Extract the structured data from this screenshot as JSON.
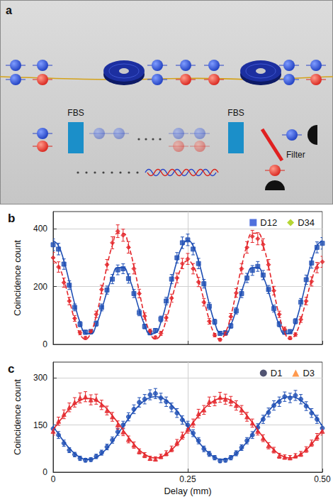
{
  "diagram": {
    "title": "a",
    "beam_splitters": [
      "FBS",
      "FBS"
    ],
    "filter": "Filter"
  },
  "chart_data": [
    {
      "type": "scatter",
      "title": "b",
      "y_label": "Coincidence count",
      "x": [
        0,
        0.01,
        0.02,
        0.03,
        0.04,
        0.05,
        0.06,
        0.07,
        0.08,
        0.09,
        0.1,
        0.11,
        0.12,
        0.13,
        0.14,
        0.15,
        0.16,
        0.17,
        0.18,
        0.19,
        0.2,
        0.21,
        0.22,
        0.23,
        0.24,
        0.25,
        0.26,
        0.27,
        0.28,
        0.29,
        0.3,
        0.31,
        0.32,
        0.33,
        0.34,
        0.35,
        0.36,
        0.37,
        0.38,
        0.39,
        0.4,
        0.41,
        0.42,
        0.43,
        0.44,
        0.45,
        0.46,
        0.47,
        0.48,
        0.49,
        0.5
      ],
      "xlim": [
        0,
        0.5
      ],
      "xticks": [
        0,
        0.25,
        {
          "value": 0.5,
          "label": "0.50"
        }
      ],
      "ylim": [
        0,
        460
      ],
      "yticks": [
        0,
        200,
        400
      ],
      "grid": true,
      "legend": "upper right",
      "tick_labels": "y",
      "series": [
        {
          "name": "D12",
          "color": "#1f4fb4",
          "marker": "square",
          "line_style": "solid",
          "values": [
            345,
            330,
            278,
            205,
            128,
            70,
            42,
            44,
            72,
            128,
            188,
            226,
            258,
            262,
            228,
            176,
            110,
            62,
            40,
            48,
            88,
            150,
            226,
            300,
            352,
            362,
            330,
            280,
            210,
            132,
            78,
            38,
            40,
            64,
            116,
            176,
            230,
            256,
            270,
            240,
            190,
            124,
            70,
            42,
            44,
            80,
            146,
            224,
            282,
            336,
            350
          ],
          "errors": [
            20,
            20,
            18,
            15,
            12,
            9,
            7,
            7,
            9,
            12,
            14,
            16,
            17,
            17,
            16,
            14,
            11,
            8,
            7,
            7,
            10,
            13,
            16,
            18,
            20,
            20,
            20,
            18,
            15,
            12,
            9,
            7,
            7,
            8,
            11,
            14,
            16,
            17,
            17,
            16,
            14,
            12,
            9,
            7,
            7,
            9,
            13,
            16,
            18,
            19,
            20
          ],
          "fit": [
            360,
            341,
            289,
            217,
            140,
            76,
            39,
            36,
            67,
            120,
            182,
            235,
            266,
            266,
            235,
            182,
            120,
            67,
            36,
            39,
            76,
            140,
            217,
            289,
            341,
            360,
            341,
            289,
            217,
            140,
            76,
            39,
            36,
            67,
            120,
            182,
            235,
            266,
            266,
            235,
            182,
            120,
            67,
            36,
            39,
            76,
            140,
            217,
            289,
            341,
            360
          ]
        },
        {
          "name": "D34",
          "color": "#e4262b",
          "marker": "diamond",
          "line_style": "dashed",
          "values": [
            300,
            268,
            214,
            150,
            90,
            40,
            22,
            44,
            104,
            190,
            276,
            352,
            392,
            378,
            336,
            262,
            176,
            98,
            46,
            24,
            38,
            92,
            160,
            230,
            280,
            296,
            262,
            216,
            146,
            80,
            32,
            16,
            38,
            96,
            178,
            262,
            336,
            374,
            366,
            346,
            276,
            186,
            104,
            52,
            22,
            34,
            86,
            150,
            218,
            266,
            286
          ],
          "errors": [
            19,
            18,
            16,
            13,
            10,
            7,
            5,
            7,
            11,
            15,
            18,
            21,
            22,
            21,
            20,
            18,
            15,
            11,
            7,
            5,
            7,
            11,
            14,
            17,
            18,
            19,
            18,
            16,
            13,
            10,
            6,
            4,
            7,
            11,
            15,
            18,
            20,
            21,
            21,
            20,
            18,
            15,
            11,
            8,
            5,
            6,
            10,
            13,
            16,
            18,
            19
          ],
          "fit": [
            290,
            272,
            222,
            154,
            85,
            35,
            18,
            41,
            99,
            182,
            270,
            343,
            385,
            385,
            343,
            270,
            182,
            99,
            41,
            18,
            35,
            85,
            154,
            222,
            272,
            290,
            272,
            222,
            154,
            85,
            35,
            18,
            41,
            99,
            182,
            270,
            343,
            385,
            385,
            343,
            270,
            182,
            99,
            41,
            18,
            35,
            85,
            154,
            222,
            272,
            290
          ]
        }
      ]
    },
    {
      "type": "scatter",
      "title": "c",
      "y_label": "Coincidence count",
      "x_label": "Delay (mm)",
      "x": [
        0,
        0.01,
        0.02,
        0.03,
        0.04,
        0.05,
        0.06,
        0.07,
        0.08,
        0.09,
        0.1,
        0.11,
        0.12,
        0.13,
        0.14,
        0.15,
        0.16,
        0.17,
        0.18,
        0.19,
        0.2,
        0.21,
        0.22,
        0.23,
        0.24,
        0.25,
        0.26,
        0.27,
        0.28,
        0.29,
        0.3,
        0.31,
        0.32,
        0.33,
        0.34,
        0.35,
        0.36,
        0.37,
        0.38,
        0.39,
        0.4,
        0.41,
        0.42,
        0.43,
        0.44,
        0.45,
        0.46,
        0.47,
        0.48,
        0.49,
        0.5
      ],
      "xlim": [
        0,
        0.5
      ],
      "xticks": [
        0,
        0.25,
        {
          "value": 0.5,
          "label": "0.50"
        }
      ],
      "ylim": [
        0,
        350
      ],
      "yticks": [
        0,
        150,
        300
      ],
      "grid": true,
      "legend": "upper right",
      "series": [
        {
          "name": "D1",
          "color": "#1f4fb4",
          "marker": "circle",
          "line_style": "solid",
          "values": [
            138,
            118,
            92,
            70,
            56,
            44,
            38,
            40,
            50,
            62,
            80,
            102,
            128,
            150,
            176,
            200,
            222,
            232,
            246,
            250,
            236,
            224,
            206,
            188,
            166,
            150,
            124,
            100,
            74,
            58,
            46,
            36,
            38,
            46,
            60,
            78,
            100,
            118,
            142,
            168,
            190,
            212,
            224,
            240,
            236,
            244,
            232,
            210,
            188,
            168,
            140
          ],
          "errors": [
            12,
            11,
            10,
            8,
            7,
            7,
            6,
            6,
            7,
            8,
            9,
            10,
            11,
            12,
            13,
            14,
            15,
            15,
            16,
            16,
            15,
            15,
            14,
            14,
            13,
            12,
            11,
            10,
            9,
            8,
            7,
            6,
            6,
            7,
            8,
            9,
            10,
            11,
            12,
            13,
            14,
            15,
            15,
            15,
            15,
            16,
            15,
            14,
            14,
            13,
            12
          ],
          "fit": [
            146,
            121,
            97,
            76,
            59,
            47,
            41,
            41,
            47,
            59,
            76,
            97,
            121,
            146,
            171,
            194,
            213,
            228,
            237,
            240,
            237,
            228,
            213,
            194,
            171,
            146,
            121,
            97,
            76,
            59,
            47,
            41,
            41,
            47,
            59,
            76,
            97,
            121,
            146,
            171,
            194,
            213,
            228,
            237,
            240,
            237,
            228,
            213,
            194,
            171,
            146
          ]
        },
        {
          "name": "D3",
          "color": "#e4262b",
          "marker": "triangle",
          "line_style": "solid",
          "values": [
            130,
            162,
            184,
            206,
            222,
            236,
            240,
            230,
            232,
            214,
            196,
            176,
            150,
            128,
            104,
            86,
            66,
            54,
            44,
            42,
            50,
            60,
            74,
            94,
            116,
            136,
            156,
            186,
            198,
            224,
            226,
            238,
            232,
            226,
            212,
            198,
            176,
            156,
            130,
            108,
            84,
            70,
            52,
            48,
            46,
            52,
            58,
            72,
            92,
            112,
            130
          ],
          "errors": [
            12,
            13,
            14,
            14,
            15,
            16,
            16,
            16,
            16,
            15,
            14,
            14,
            13,
            12,
            11,
            10,
            8,
            8,
            7,
            7,
            7,
            8,
            9,
            10,
            11,
            12,
            13,
            14,
            14,
            15,
            15,
            16,
            16,
            15,
            15,
            14,
            14,
            13,
            12,
            11,
            10,
            9,
            8,
            7,
            7,
            7,
            8,
            9,
            10,
            11,
            12
          ],
          "fit": [
            134,
            158,
            180,
            201,
            217,
            228,
            234,
            234,
            228,
            217,
            201,
            180,
            158,
            134,
            111,
            89,
            71,
            57,
            48,
            45,
            48,
            57,
            71,
            89,
            111,
            134,
            158,
            180,
            201,
            217,
            228,
            234,
            234,
            228,
            217,
            201,
            180,
            158,
            134,
            111,
            89,
            71,
            57,
            48,
            45,
            48,
            57,
            71,
            89,
            111,
            134
          ]
        }
      ]
    }
  ]
}
